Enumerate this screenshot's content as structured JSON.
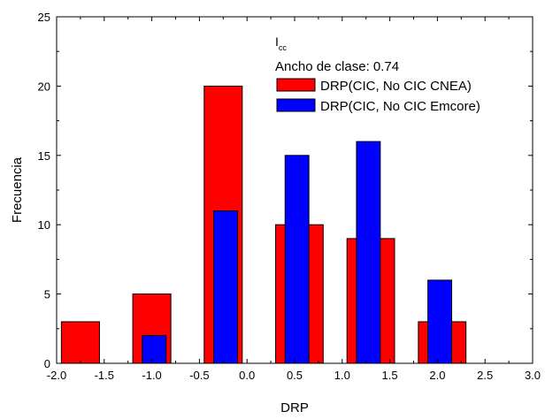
{
  "chart_data": {
    "type": "bar",
    "legend_title_main": "I",
    "legend_title_sub": "cc",
    "legend_subtitle": "Ancho de clase: 0.74",
    "xlabel": "DRP",
    "ylabel": "Frecuencia",
    "xlim": [
      -2.0,
      3.0
    ],
    "ylim": [
      0,
      25
    ],
    "xticks": [
      "-2.0",
      "-1.5",
      "-1.0",
      "-0.5",
      "0.0",
      "0.5",
      "1.0",
      "1.5",
      "2.0",
      "2.5",
      "3.0"
    ],
    "yticks": [
      "0",
      "5",
      "10",
      "15",
      "20",
      "25"
    ],
    "series": [
      {
        "name": "DRP(CIC, No CIC CNEA)",
        "color": "#ff0000",
        "x_ranges": [
          [
            -1.95,
            -1.55
          ],
          [
            -1.2,
            -0.8
          ],
          [
            -0.45,
            -0.05
          ],
          [
            0.3,
            0.8
          ],
          [
            1.05,
            1.55
          ],
          [
            1.8,
            2.3
          ]
        ],
        "values": [
          3,
          5,
          20,
          10,
          9,
          3
        ]
      },
      {
        "name": "DRP(CIC, No CIC Emcore)",
        "color": "#0000ff",
        "x_ranges": [
          [
            -1.1,
            -0.85
          ],
          [
            -0.35,
            -0.1
          ],
          [
            0.4,
            0.65
          ],
          [
            1.15,
            1.4
          ],
          [
            1.9,
            2.15
          ]
        ],
        "values": [
          2,
          11,
          15,
          16,
          6
        ]
      }
    ],
    "grid": false,
    "legend_position": "top-right"
  }
}
